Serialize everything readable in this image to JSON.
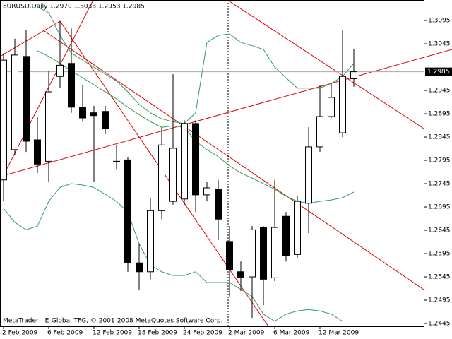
{
  "chart_data": {
    "type": "candlestick",
    "title": "EURUSD,Daily  1.2970 1.3033 1.2953 1.2985",
    "annotation": "MetaTrader - E-Global TFG, © 2001-2008 MetaQuotes Software Corp.",
    "categories": [
      "2 Feb 2009",
      null,
      null,
      null,
      "6 Feb 2009",
      null,
      null,
      null,
      "12 Feb 2009",
      null,
      null,
      null,
      "18 Feb 2009",
      null,
      null,
      null,
      "24 Feb 2009",
      null,
      null,
      null,
      "2 Mar 2009",
      null,
      null,
      null,
      "6 Mar 2009",
      null,
      null,
      null,
      "12 Mar 2009",
      null,
      null,
      null
    ],
    "open": [
      1.2753,
      1.2818,
      1.3018,
      1.2839,
      1.2793,
      1.2975,
      1.3003,
      1.2909,
      1.2897,
      1.29,
      1.2793,
      1.2796,
      1.2575,
      1.2556,
      1.2687,
      1.2707,
      1.2712,
      1.2874,
      1.2721,
      1.2733,
      1.2621,
      1.2556,
      1.2545,
      1.2651,
      1.2543,
      1.2675,
      1.2593,
      1.2703,
      1.2824,
      1.2889,
      1.2854,
      1.297
    ],
    "high": [
      1.3025,
      1.3056,
      1.3075,
      1.2889,
      1.2987,
      1.3094,
      1.3078,
      1.2957,
      1.2912,
      1.2912,
      1.2828,
      1.2802,
      1.2616,
      1.2715,
      1.2866,
      1.298,
      1.2881,
      1.2881,
      1.2748,
      1.2753,
      1.2654,
      1.2578,
      1.2654,
      1.2654,
      1.2753,
      1.2684,
      1.2718,
      1.2866,
      1.2957,
      1.296,
      1.3075,
      1.3033
    ],
    "low": [
      1.2707,
      1.2806,
      1.2813,
      1.2768,
      1.2748,
      1.295,
      1.2897,
      1.2878,
      1.2748,
      1.2851,
      1.2775,
      1.2556,
      1.2518,
      1.254,
      1.2669,
      1.27,
      1.27,
      1.2684,
      1.2707,
      1.2624,
      1.2503,
      1.2515,
      1.2457,
      1.2484,
      1.2536,
      1.2578,
      1.2586,
      1.2639,
      1.2813,
      1.2886,
      1.2845,
      1.2953
    ],
    "close": [
      1.301,
      1.3021,
      1.2836,
      1.2787,
      1.2942,
      1.2999,
      1.2909,
      1.2886,
      1.2891,
      1.2863,
      1.2792,
      1.2575,
      1.2556,
      1.2687,
      1.2828,
      1.2821,
      1.2874,
      1.2721,
      1.2736,
      1.2669,
      1.256,
      1.2543,
      1.2646,
      1.254,
      1.2651,
      1.259,
      1.2707,
      1.2824,
      1.2889,
      1.293,
      1.2975,
      1.2985
    ],
    "bands": [
      {
        "color": "#2e9e5e",
        "values": [
          null,
          null,
          null,
          1.3124,
          1.3112,
          1.3063,
          1.3025,
          1.301,
          1.2995,
          1.298,
          1.2965,
          1.2942,
          1.2915,
          1.2897,
          1.2884,
          1.2878,
          1.2874,
          1.2897,
          1.3048,
          1.3063,
          1.3066,
          1.3048,
          1.3041,
          1.3033,
          1.2995,
          1.2972,
          1.295,
          1.295,
          1.295,
          1.296,
          1.2975,
          1.3003
        ]
      },
      {
        "color": "#2e9e5e",
        "values": [
          null,
          null,
          null,
          1.303,
          1.3018,
          1.3003,
          1.2987,
          1.2972,
          1.2957,
          1.2942,
          1.2927,
          1.2909,
          1.2893,
          1.2878,
          1.2866,
          1.2869,
          1.2866,
          1.2836,
          1.2818,
          1.2803,
          1.2783,
          1.2768,
          1.2757,
          1.2745,
          1.2733,
          1.2718,
          1.2707,
          1.2703,
          1.2707,
          1.271,
          1.2715,
          1.2727
        ]
      },
      {
        "color": "#2e9e5e",
        "values": [
          1.2692,
          1.2662,
          1.2646,
          1.2654,
          1.2707,
          1.2737,
          1.2745,
          1.2742,
          1.2737,
          1.2722,
          1.2707,
          1.2684,
          1.2616,
          1.2571,
          1.2556,
          1.2548,
          1.2548,
          1.2556,
          1.2533,
          1.2533,
          1.2533,
          1.2518,
          1.2503,
          1.2465,
          1.245,
          1.2465,
          1.2472,
          1.2475,
          1.2472,
          1.2465,
          1.245,
          null
        ]
      }
    ],
    "current_price": 1.2985,
    "ylim": [
      1.2439,
      1.3139
    ],
    "yticks": [
      1.3095,
      1.3045,
      1.2945,
      1.2895,
      1.2845,
      1.2795,
      1.2745,
      1.2695,
      1.2645,
      1.2595,
      1.2545,
      1.2495,
      1.2445
    ]
  }
}
